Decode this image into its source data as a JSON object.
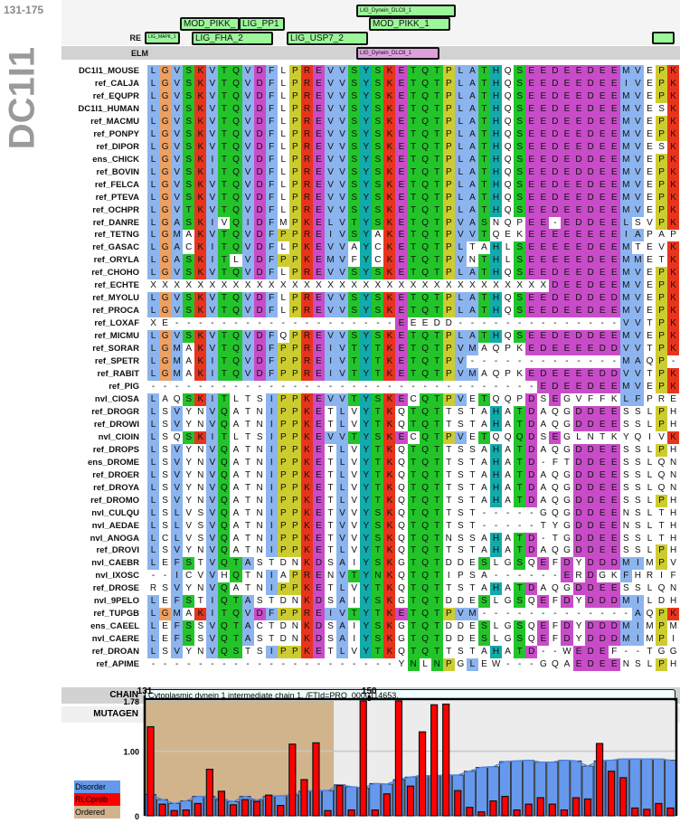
{
  "header": {
    "range": "131-175",
    "gene": "DC1I1"
  },
  "features": {
    "re_label": "RE",
    "elm_label": "ELM",
    "boxes": [
      {
        "label": "LIG_Dynein_DLC8_1",
        "row": "top"
      },
      {
        "label": "MOD_PIKK_",
        "row": "mid"
      },
      {
        "label": "LIG_PP1",
        "row": "mid"
      },
      {
        "label": "MOD_PIKK_1",
        "row": "mid"
      },
      {
        "label": "LIG_MAPK_1",
        "row": "re"
      },
      {
        "label": "LIG_FHA_2",
        "row": "re"
      },
      {
        "label": "LIG_USP7_2",
        "row": "re"
      }
    ],
    "elm_box": "LIG_Dynein_DLC8_1"
  },
  "alignment": [
    {
      "name": "DC1I1_MOUSE",
      "seq": "LGVSKVTQVDFLPREVVSYSKETQTPLATHQSEEDEEDEEMVEPK"
    },
    {
      "name": "ref_CALJA",
      "seq": "LGVSKVTQVDFLPREVVSYSKETQTPLATHQSEEDEEDEEIVEPK"
    },
    {
      "name": "ref_EQUPR",
      "seq": "LGVSKVTQVDFLPREVVSYSKETQTPLATHQSEEDEEDEEMVEPK"
    },
    {
      "name": "DC1I1_HUMAN",
      "seq": "LGVSKVTQVDFLPREVVSYSKETQTPLATHQSEEDEEDEEMVESK"
    },
    {
      "name": "ref_MACMU",
      "seq": "LGVSKVTQVDFLPREVVSYSKETQTPLATHQSEEDEEDEEMVEPK"
    },
    {
      "name": "ref_PONPY",
      "seq": "LGVSKVTQVDFLPREVVSYSKETQTPLATHQSEEDEEDEEMVEPK"
    },
    {
      "name": "ref_DIPOR",
      "seq": "LGVSKVTQVDFLPREVVSYSKETQTPLATHQSEEDEEDEEMVESK"
    },
    {
      "name": "ens_CHICK",
      "seq": "LGVSKITQVDFLPREVVSYSKETQTPLATHQSEEDEDDEEMVEPK"
    },
    {
      "name": "ref_BOVIN",
      "seq": "LGVSKITQVDFLPREVVSYSKETQTPLATHQSEEDEDDEEMVEPK"
    },
    {
      "name": "ref_FELCA",
      "seq": "LGVSKVTQVDFLPREVVSYSKETQTPLATHQSEEDEEDEEMVEPK"
    },
    {
      "name": "ref_PTEVA",
      "seq": "LGVSKVTQVDFLPREVVSYSKETQTPLATHQSEEDEEDEEMVEPK"
    },
    {
      "name": "ref_OCHPR",
      "seq": "LGVTKVTQVDFLPREVVSYSKETQTPLATHQSEEDEEDEEMVEPK"
    },
    {
      "name": "ref_DANRE",
      "seq": "LGASKIVQIDFMPKELVTYSKETQTPVASNQPEE-EDDEELSVPK"
    },
    {
      "name": "ref_TETNG",
      "seq": "LGMAKVTQVDFPPREIVSYAKETQTPVVTQEKEEEEEEEEIAPAP"
    },
    {
      "name": "ref_GASAC",
      "seq": "LGACKITQVDFLPKEVVAYCKETQTPLTAHLSEEEEEDEEMTEVK"
    },
    {
      "name": "ref_ORYLA",
      "seq": "LGASKITLVDFPPKEMVFYCKETQTPVNTHLSEEEEEDEEMMETK"
    },
    {
      "name": "ref_CHOHO",
      "seq": "LGVSKVTQVDFLPREVVSYSKETQTPLATHQSEEDEEDEEMVEPK"
    },
    {
      "name": "ref_ECHTE",
      "seq": "XXXXXXXXXXXXXXXXXXXXXXXXXXXXXXXXXXDEEDEEMVEPK"
    },
    {
      "name": "ref_MYOLU",
      "seq": "LGVSKVTQVDFLPREVVSYSKETQTPLATHQSEEDEDDEDMVEPK"
    },
    {
      "name": "ref_PROCA",
      "seq": "LGVSKVTQVDFLPREVVSYSKETQTPLATHQSEEDEEDEEMVEPK"
    },
    {
      "name": "ref_LOXAF",
      "seq": "XE-------------------EEEDD--------------VVTPK"
    },
    {
      "name": "ref_MICMU",
      "seq": "LGVSKVTQVDFQPREVVSYSKETQTPLATHQSEEDEDDEEMVEPK"
    },
    {
      "name": "ref_SORAR",
      "seq": "LGMAKVTQVDFPPREIVTYTKETQTPVMAQPKEDEEEEDDVVTPK"
    },
    {
      "name": "ref_SPETR",
      "seq": "LGMAKITQVDFPPREIVTYTKETQTPV-------------MAQP-"
    },
    {
      "name": "ref_RABIT",
      "seq": "LGMAKITQVDFPPREIVTYTKETQTPVMAQPKEDEEEEDDVVTPK"
    },
    {
      "name": "ref_PIG",
      "seq": "---------------------------------EDEEDEEMVEPK"
    },
    {
      "name": "nvl_CIOSA",
      "seq": "LAQSKITLTSIPPKEVVTYSKECQTPVETQQPDSEGVFFKLFPRE"
    },
    {
      "name": "ref_DROGR",
      "seq": "LSVYNVQATNIPPKETLVYTKQTQTTSTAHATDAQGDDEESSLPH"
    },
    {
      "name": "ref_DROWI",
      "seq": "LSVYNVQATNIPPKETLVYTKQTQTTSTAHATDAQGDDEESSLPH"
    },
    {
      "name": "nvl_CIOIN",
      "seq": "LSQSKITLTSIPPKEVVTYSKECQTPVETQQQDSEGLNTKYQIVK"
    },
    {
      "name": "ref_DROPS",
      "seq": "LSVYNVQATNIPPKETLVYTKQTQTTSSAHATDAQGDDEESSLPH"
    },
    {
      "name": "ens_DROME",
      "seq": "LSVYNVQATNIPPKETLVYTKQTQTTSTAHATD-FTDDEESSLQN"
    },
    {
      "name": "ref_DROER",
      "seq": "LSVYNVQATNIPPKETLVYTKQTQTTSTAHATDAQGDDEESSLQN"
    },
    {
      "name": "ref_DROYA",
      "seq": "LSVYNVQATNIPPKETLVYTKQTQTTSTAHATDAQGDDEESSLQN"
    },
    {
      "name": "ref_DROMO",
      "seq": "LSVYNVQATNIPPKETLVYTKQTQTTSTAHATDAQGDDEESSLPH"
    },
    {
      "name": "nvl_CULQU",
      "seq": "LSLVSVQATNIPPKETVVYSKQTQTTST-----GQGDDEENSLTH"
    },
    {
      "name": "nvl_AEDAE",
      "seq": "LSLVSVQATNIPPKETVVYSKQTQTTST-----TYGDDEENSLTH"
    },
    {
      "name": "nvl_ANOGA",
      "seq": "LCLVSVQATNIPPKETVVYSKQTQTNSSAHATD-TGDDEESSLTH"
    },
    {
      "name": "ref_DROVI",
      "seq": "LSVYNVQATNIPPKETLVYTKQTQTTSTAHATDAQGDDEESSLPH"
    },
    {
      "name": "nvl_CAEBR",
      "seq": "LEFSTVQTASTDNKDSAIYSKGTQTDDESLGSQEFDYDDDMIMPV"
    },
    {
      "name": "nvl_IXOSC",
      "seq": "--ICVVHQTNIAPRENVTYNKQTQTIPSA------ERDGKFHRIF"
    },
    {
      "name": "ref_DROSE",
      "seq": "RSVYNVQATNIPPKETLVYTKQTQTTSTAHATDAQGDDEESSLQN"
    },
    {
      "name": "nvl_9PELO",
      "seq": "LEFSTIQTASTDNKDSAIYSKGTQTDDESLGSQEFDYDDDMILDH"
    },
    {
      "name": "ref_TUPGB",
      "seq": "LGMAKITQVDFPPREIVTYTKETQTPVM-------------AQPK"
    },
    {
      "name": "ens_CAEEL",
      "seq": "LEFSSVQTACTDNKDSAIYSKGTQTDDESLGSQEFDYDDDMIMPM"
    },
    {
      "name": "nvl_CAERE",
      "seq": "LEFSSVQTASTDNKDSAIYSKGTQTDDESLGSQEFDYDDDMIMPI"
    },
    {
      "name": "ref_DROAN",
      "seq": "LSVYNVQSTSIPPKETLVYTKQTQTTSTAHATD--WEDEF--TGG"
    },
    {
      "name": "ref_APIME",
      "seq": "---------------------YNLNPGLEW---GQAEDEENSLPH"
    }
  ],
  "residue_colors": {
    "hydrophobic": "#8cb4ee",
    "charged_pos": "#e8341c",
    "charged_neg": "#c84cc8",
    "polar": "#22c42a",
    "glycine": "#eca062",
    "proline": "#cccc30",
    "aromatic": "#12aaaa"
  },
  "chain": {
    "label": "CHAIN",
    "text": "Cytoplasmic dynein 1 intermediate chain 1. /FTId=PRO_0000114653."
  },
  "mutagen": {
    "label": "MUTAGEN",
    "text": "M"
  },
  "chart_data": {
    "type": "bar",
    "x_start": 131,
    "x_end": 175,
    "xticks": [
      "131",
      "150"
    ],
    "yticks": [
      "1.78",
      "1.00",
      "0"
    ],
    "ylim": [
      0,
      1.78
    ],
    "ordered_region": [
      131,
      146
    ],
    "legend": [
      "Disorder",
      "RLCprob",
      "Ordered"
    ],
    "colors": {
      "Disorder": "#6699ee",
      "RLCprob": "#ff0000",
      "Ordered": "#d2b48c"
    },
    "series": [
      {
        "name": "Disorder",
        "values": [
          0.33,
          0.25,
          0.19,
          0.23,
          0.3,
          0.3,
          0.25,
          0.22,
          0.3,
          0.24,
          0.3,
          0.31,
          0.32,
          0.38,
          0.39,
          0.39,
          0.48,
          0.45,
          0.43,
          0.5,
          0.49,
          0.56,
          0.6,
          0.62,
          0.62,
          0.63,
          0.63,
          0.69,
          0.75,
          0.76,
          0.84,
          0.85,
          0.86,
          0.83,
          0.83,
          0.86,
          0.85,
          0.77,
          0.85,
          0.86,
          0.88,
          0.88,
          0.88,
          0.88,
          0.86
        ]
      },
      {
        "name": "RLCprob",
        "values": [
          1.38,
          0.18,
          0.08,
          0.09,
          0.19,
          0.72,
          0.38,
          0.17,
          0.25,
          0.22,
          0.32,
          0.16,
          1.11,
          0.56,
          1.13,
          0.08,
          0.47,
          0.09,
          1.78,
          0.09,
          0.34,
          1.78,
          0.46,
          1.3,
          1.72,
          1.73,
          0.39,
          0.13,
          0.06,
          0.23,
          0.3,
          0.09,
          0.18,
          0.28,
          0.18,
          0.09,
          0.28,
          0.26,
          1.12,
          0.69,
          0.59,
          0.12,
          0.1,
          0.19,
          0.12
        ]
      }
    ]
  }
}
